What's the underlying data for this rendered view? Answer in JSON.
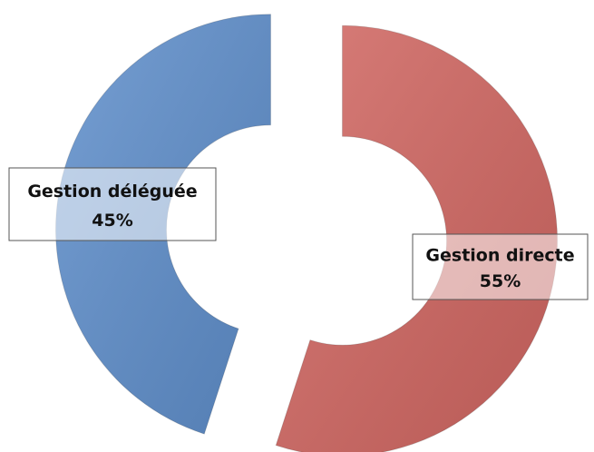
{
  "chart_data": {
    "type": "donut",
    "categories": [
      "Gestion directe",
      "Gestion déléguée"
    ],
    "values": [
      55,
      45
    ],
    "value_labels": [
      "55%",
      "45%"
    ],
    "colors": [
      "#d26762",
      "#5f8fcc"
    ]
  }
}
